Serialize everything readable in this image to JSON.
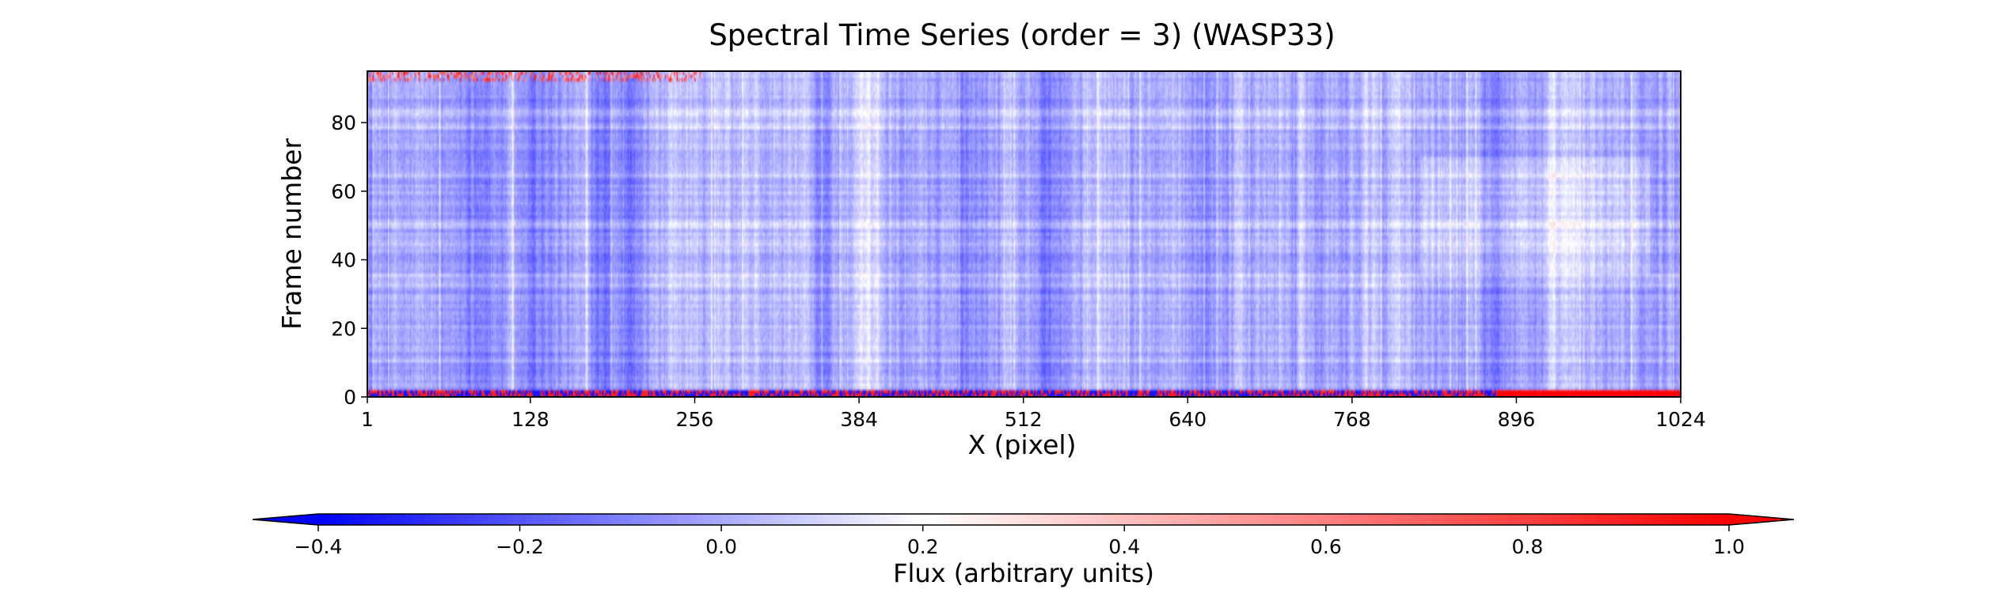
{
  "chart_data": {
    "type": "heatmap",
    "title": "Spectral Time Series (order = 3) (WASP33)",
    "xlabel": "X (pixel)",
    "ylabel": "Frame number",
    "xlim": [
      1,
      1024
    ],
    "ylim": [
      0,
      95
    ],
    "x_ticks": [
      1,
      128,
      256,
      384,
      512,
      640,
      768,
      896,
      1024
    ],
    "x_tick_labels": [
      "1",
      "128",
      "256",
      "384",
      "512",
      "640",
      "768",
      "896",
      "1024"
    ],
    "y_ticks": [
      0,
      20,
      40,
      60,
      80
    ],
    "y_tick_labels": [
      "0",
      "20",
      "40",
      "60",
      "80"
    ],
    "grid": false,
    "colormap": "bwr",
    "colormap_colors": [
      "#0000ff",
      "#ffffff",
      "#ff0000"
    ],
    "colorbar": {
      "label": "Flux (arbitrary units)",
      "range": [
        -0.4,
        1.0
      ],
      "extend": "both",
      "ticks": [
        -0.4,
        -0.2,
        0.0,
        0.2,
        0.4,
        0.6,
        0.8,
        1.0
      ],
      "tick_labels": [
        "−0.4",
        "−0.2",
        "0.0",
        "0.2",
        "0.4",
        "0.6",
        "0.8",
        "1.0"
      ],
      "orientation": "horizontal",
      "placement": "bottom"
    },
    "n_frames": 95,
    "n_pixels": 1024,
    "typical_flux": 0.0
  }
}
